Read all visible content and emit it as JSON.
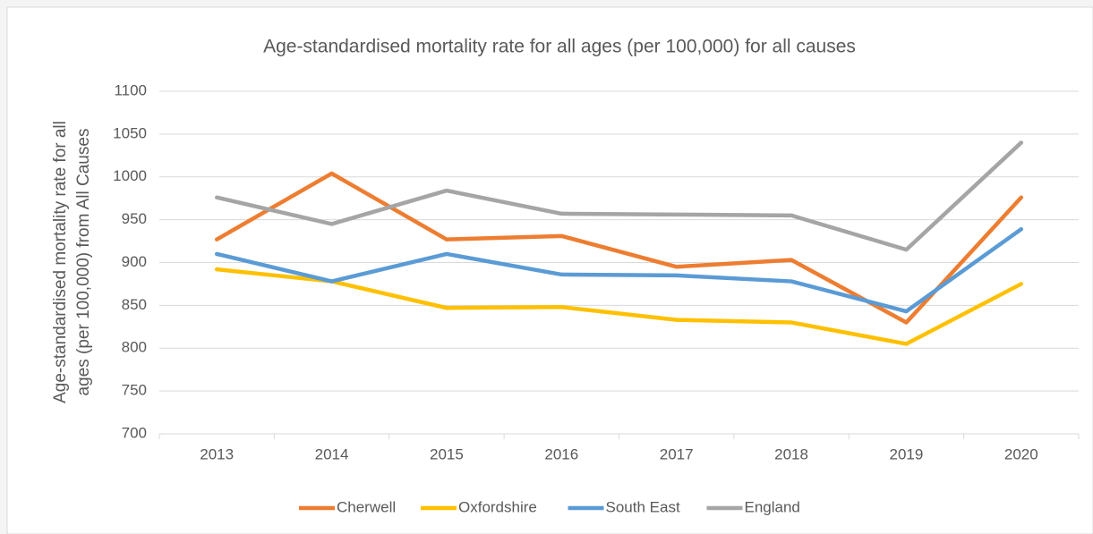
{
  "chart_data": {
    "type": "line",
    "title": "Age-standardised mortality rate for all ages (per 100,000) for all causes",
    "y_label": [
      "Age-standardised mortality rate for all",
      "ages (per 100,000) from All Causes"
    ],
    "categories": [
      "2013",
      "2014",
      "2015",
      "2016",
      "2017",
      "2018",
      "2019",
      "2020"
    ],
    "series": [
      {
        "name": "Cherwell",
        "color": "#ed7d31",
        "values": [
          927,
          1004,
          927,
          931,
          895,
          903,
          830,
          976
        ]
      },
      {
        "name": "Oxfordshire",
        "color": "#ffc000",
        "values": [
          892,
          878,
          847,
          848,
          833,
          830,
          805,
          875
        ]
      },
      {
        "name": "South East",
        "color": "#5b9bd5",
        "values": [
          910,
          878,
          910,
          886,
          885,
          878,
          843,
          939
        ]
      },
      {
        "name": "England",
        "color": "#a5a5a5",
        "values": [
          976,
          945,
          984,
          957,
          956,
          955,
          915,
          1040
        ]
      }
    ],
    "ylim": [
      700,
      1100
    ],
    "yticks": [
      700,
      750,
      800,
      850,
      900,
      950,
      1000,
      1050,
      1100
    ],
    "grid": true,
    "legend": "bottom"
  }
}
